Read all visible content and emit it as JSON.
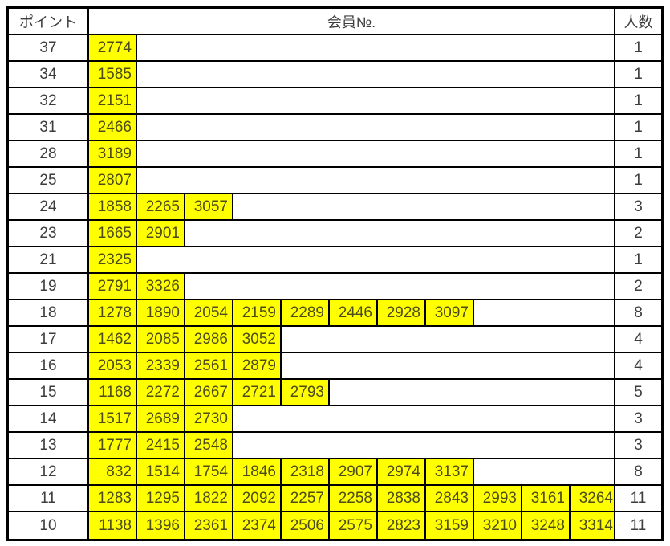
{
  "table": {
    "headers": {
      "points": "ポイント",
      "member_no": "会員№.",
      "count": "人数"
    },
    "colors": {
      "highlight": "#ffff00",
      "border": "#000000",
      "text": "#3d3d3d",
      "member_text": "#4c4c1a",
      "background": "#ffffff"
    },
    "rows": [
      {
        "points": "37",
        "members": [
          "2774"
        ],
        "count": "1"
      },
      {
        "points": "34",
        "members": [
          "1585"
        ],
        "count": "1"
      },
      {
        "points": "32",
        "members": [
          "2151"
        ],
        "count": "1"
      },
      {
        "points": "31",
        "members": [
          "2466"
        ],
        "count": "1"
      },
      {
        "points": "28",
        "members": [
          "3189"
        ],
        "count": "1"
      },
      {
        "points": "25",
        "members": [
          "2807"
        ],
        "count": "1"
      },
      {
        "points": "24",
        "members": [
          "1858",
          "2265",
          "3057"
        ],
        "count": "3"
      },
      {
        "points": "23",
        "members": [
          "1665",
          "2901"
        ],
        "count": "2"
      },
      {
        "points": "21",
        "members": [
          "2325"
        ],
        "count": "1"
      },
      {
        "points": "19",
        "members": [
          "2791",
          "3326"
        ],
        "count": "2"
      },
      {
        "points": "18",
        "members": [
          "1278",
          "1890",
          "2054",
          "2159",
          "2289",
          "2446",
          "2928",
          "3097"
        ],
        "count": "8"
      },
      {
        "points": "17",
        "members": [
          "1462",
          "2085",
          "2986",
          "3052"
        ],
        "count": "4"
      },
      {
        "points": "16",
        "members": [
          "2053",
          "2339",
          "2561",
          "2879"
        ],
        "count": "4"
      },
      {
        "points": "15",
        "members": [
          "1168",
          "2272",
          "2667",
          "2721",
          "2793"
        ],
        "count": "5"
      },
      {
        "points": "14",
        "members": [
          "1517",
          "2689",
          "2730"
        ],
        "count": "3"
      },
      {
        "points": "13",
        "members": [
          "1777",
          "2415",
          "2548"
        ],
        "count": "3"
      },
      {
        "points": "12",
        "members": [
          "832",
          "1514",
          "1754",
          "1846",
          "2318",
          "2907",
          "2974",
          "3137"
        ],
        "count": "8"
      },
      {
        "points": "11",
        "members": [
          "1283",
          "1295",
          "1822",
          "2092",
          "2257",
          "2258",
          "2838",
          "2843",
          "2993",
          "3161",
          "3264"
        ],
        "count": "11"
      },
      {
        "points": "10",
        "members": [
          "1138",
          "1396",
          "2361",
          "2374",
          "2506",
          "2575",
          "2823",
          "3159",
          "3210",
          "3248",
          "3314"
        ],
        "count": "11"
      }
    ]
  }
}
